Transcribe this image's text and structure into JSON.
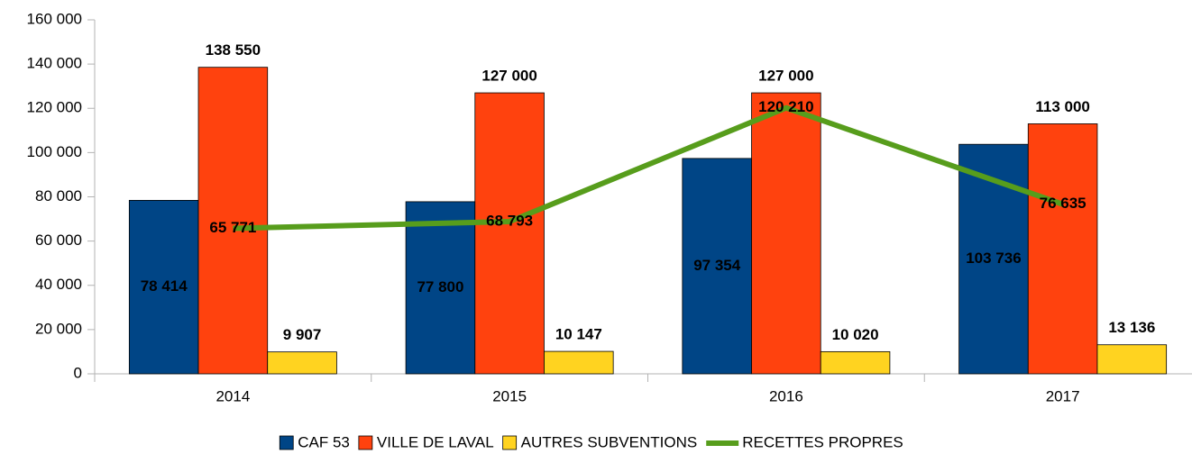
{
  "chart_data": {
    "type": "bar",
    "categories": [
      "2014",
      "2015",
      "2016",
      "2017"
    ],
    "series": [
      {
        "name": "CAF 53",
        "type": "bar",
        "color": "#004586",
        "values": [
          78414,
          77800,
          97354,
          103736
        ],
        "value_labels": [
          "78 414",
          "77 800",
          "97 354",
          "103 736"
        ]
      },
      {
        "name": "VILLE DE LAVAL",
        "type": "bar",
        "color": "#ff420e",
        "values": [
          138550,
          127000,
          127000,
          113000
        ],
        "value_labels": [
          "138 550",
          "127 000",
          "127 000",
          "113 000"
        ]
      },
      {
        "name": "AUTRES SUBVENTIONS",
        "type": "bar",
        "color": "#ffd320",
        "values": [
          9907,
          10147,
          10020,
          13136
        ],
        "value_labels": [
          "9 907",
          "10 147",
          "10 020",
          "13 136"
        ]
      },
      {
        "name": "RECETTES PROPRES",
        "type": "line",
        "color": "#579d1c",
        "values": [
          65771,
          68793,
          120210,
          76635
        ],
        "value_labels": [
          "65 771",
          "68 793",
          "120 210",
          "76 635"
        ]
      }
    ],
    "ylim": [
      0,
      160000
    ],
    "yticks": [
      0,
      {
        "value": 20000,
        "label": "20 000"
      },
      {
        "value": 40000,
        "label": "40 000"
      },
      {
        "value": 60000,
        "label": "60 000"
      },
      {
        "value": 80000,
        "label": "80 000"
      },
      {
        "value": 100000,
        "label": "100 000"
      },
      {
        "value": 120000,
        "label": "120 000"
      },
      {
        "value": 140000,
        "label": "140 000"
      },
      {
        "value": 160000,
        "label": "160 000"
      }
    ],
    "grid": false,
    "legend": "bottom"
  }
}
